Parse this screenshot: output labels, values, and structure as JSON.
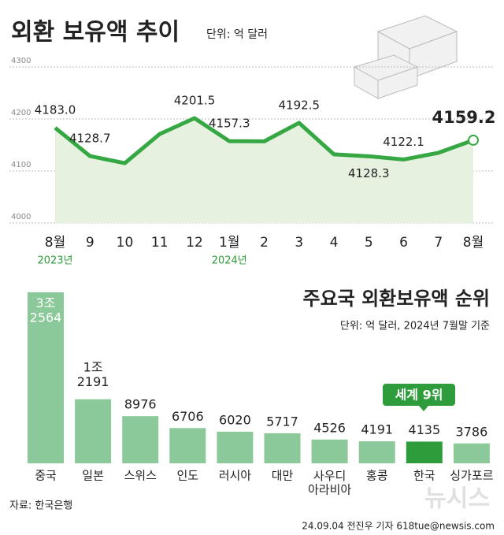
{
  "chart_data": [
    {
      "type": "line",
      "title": "외환 보유액 추이",
      "subtitle": "단위: 억 달러",
      "categories": [
        "8월",
        "9",
        "10",
        "11",
        "12",
        "1월",
        "2",
        "3",
        "4",
        "5",
        "6",
        "7",
        "8월"
      ],
      "year_labels": [
        "2023년",
        null,
        null,
        null,
        null,
        "2024년",
        null,
        null,
        null,
        null,
        null,
        null,
        null
      ],
      "values": [
        4183.0,
        4128.7,
        4115,
        4171,
        4201.5,
        4157.3,
        4157,
        4192.5,
        4132,
        4128.3,
        4122.1,
        4135,
        4159.2
      ],
      "value_labels": [
        "4183.0",
        "4128.7",
        null,
        null,
        "4201.5",
        "4157.3",
        null,
        "4192.5",
        null,
        "4128.3",
        "4122.1",
        null,
        "4159.2"
      ],
      "color": "#35a843",
      "ylim": [
        4000,
        4300
      ],
      "yticks": [
        4000,
        4100,
        4200,
        4300
      ],
      "grid": true
    },
    {
      "type": "bar",
      "title": "주요국 외환보유액 순위",
      "subtitle": "단위: 억 달러, 2024년 7월말 기준",
      "categories": [
        "중국",
        "일본",
        "스위스",
        "인도",
        "러시아",
        "대만",
        "사우디\n아라비아",
        "홍콩",
        "한국",
        "싱가포르"
      ],
      "values": [
        32564,
        12191,
        8976,
        6706,
        6020,
        5717,
        4526,
        4191,
        4135,
        3786
      ],
      "value_labels": [
        "3조\n2564",
        "1조\n2191",
        "8976",
        "6706",
        "6020",
        "5717",
        "4526",
        "4191",
        "4135",
        "3786"
      ],
      "colors": [
        "#8cc99a",
        "#8cc99a",
        "#8cc99a",
        "#8cc99a",
        "#8cc99a",
        "#8cc99a",
        "#8cc99a",
        "#8cc99a",
        "#2f9c3c",
        "#8cc99a"
      ],
      "ylim": [
        0,
        33000
      ],
      "badge": "세계 9위"
    }
  ],
  "footer": {
    "source": "자료: 한국은행",
    "credit": "24.09.04 전진우 기자 618tue@newsis.com",
    "watermark": "뉴시스"
  }
}
